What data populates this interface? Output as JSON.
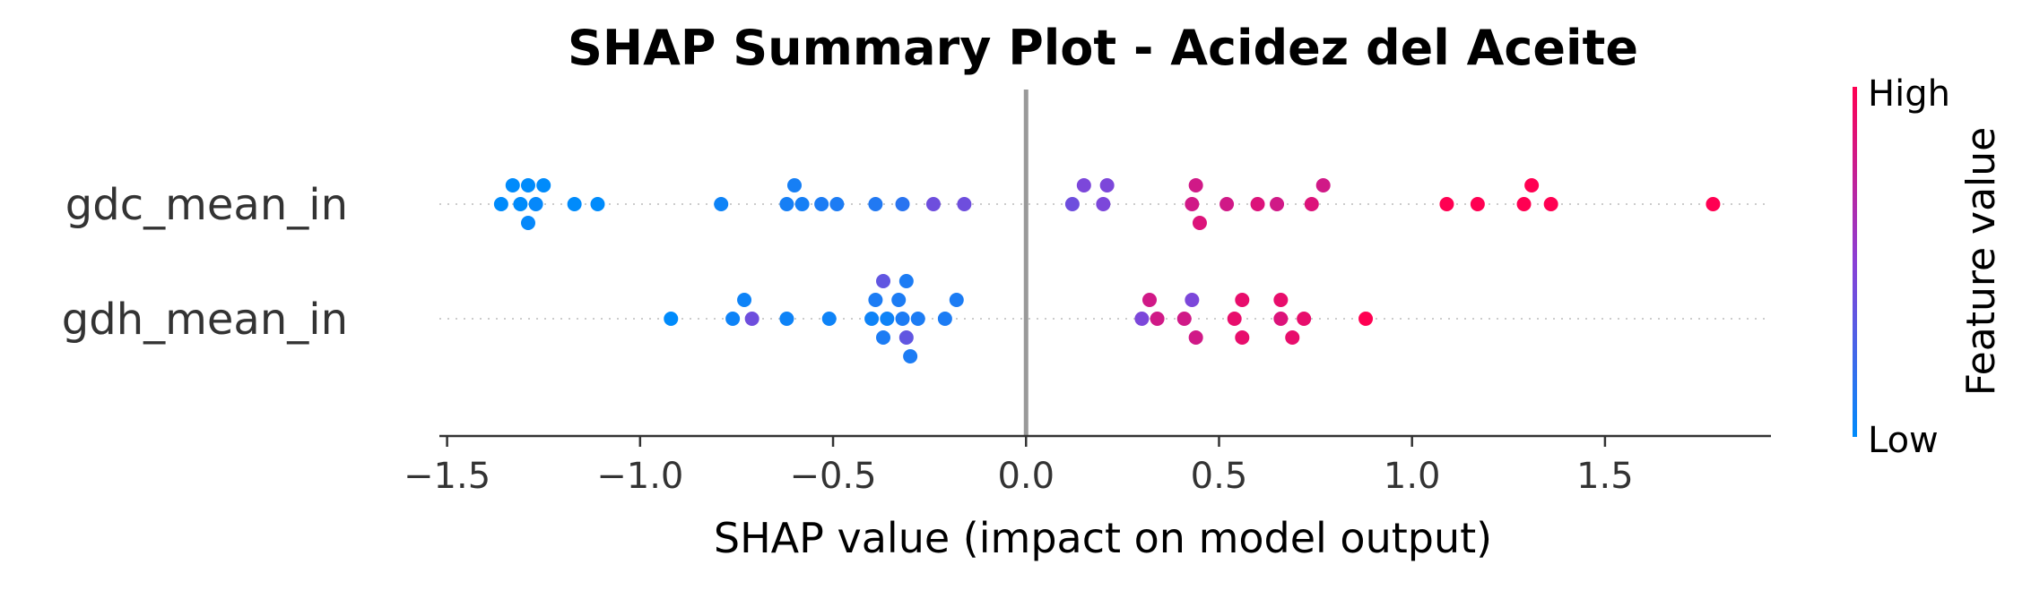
{
  "chart_data": {
    "type": "scatter",
    "title": "SHAP Summary Plot - Acidez del Aceite",
    "xlabel": "SHAP value (impact on model output)",
    "xlim": [
      -1.52,
      1.93
    ],
    "xticks": [
      -1.5,
      -1.0,
      -0.5,
      0.0,
      0.5,
      1.0,
      1.5
    ],
    "xtick_labels": [
      "−1.5",
      "−1.0",
      "−0.5",
      "0.0",
      "0.5",
      "1.0",
      "1.5"
    ],
    "grid": false,
    "features": [
      "gdc_mean_in",
      "gdh_mean_in"
    ],
    "colorbar": {
      "label": "Feature value",
      "high_label": "High",
      "low_label": "Low",
      "low_color": "#008bfb",
      "high_color": "#ff0052"
    },
    "series": [
      {
        "feature": "gdc_mean_in",
        "points": [
          {
            "x": -1.36,
            "v": 0.0
          },
          {
            "x": -1.33,
            "v": 0.0
          },
          {
            "x": -1.31,
            "v": 0.0
          },
          {
            "x": -1.29,
            "v": 0.0
          },
          {
            "x": -1.25,
            "v": 0.0
          },
          {
            "x": -1.17,
            "v": 0.0
          },
          {
            "x": -1.11,
            "v": 0.0
          },
          {
            "x": -1.29,
            "v": 0.02
          },
          {
            "x": -1.27,
            "v": 0.02
          },
          {
            "x": -0.79,
            "v": 0.05
          },
          {
            "x": -0.62,
            "v": 0.08
          },
          {
            "x": -0.6,
            "v": 0.08
          },
          {
            "x": -0.58,
            "v": 0.08
          },
          {
            "x": -0.53,
            "v": 0.1
          },
          {
            "x": -0.49,
            "v": 0.1
          },
          {
            "x": -0.39,
            "v": 0.12
          },
          {
            "x": -0.32,
            "v": 0.15
          },
          {
            "x": -0.24,
            "v": 0.4
          },
          {
            "x": -0.16,
            "v": 0.4
          },
          {
            "x": 0.12,
            "v": 0.4
          },
          {
            "x": 0.15,
            "v": 0.45
          },
          {
            "x": 0.2,
            "v": 0.45
          },
          {
            "x": 0.21,
            "v": 0.45
          },
          {
            "x": 0.43,
            "v": 0.8
          },
          {
            "x": 0.44,
            "v": 0.8
          },
          {
            "x": 0.45,
            "v": 0.85
          },
          {
            "x": 0.52,
            "v": 0.8
          },
          {
            "x": 0.6,
            "v": 0.85
          },
          {
            "x": 0.65,
            "v": 0.8
          },
          {
            "x": 0.74,
            "v": 0.85
          },
          {
            "x": 0.77,
            "v": 0.8
          },
          {
            "x": 1.09,
            "v": 1.0
          },
          {
            "x": 1.17,
            "v": 1.0
          },
          {
            "x": 1.29,
            "v": 1.0
          },
          {
            "x": 1.31,
            "v": 1.0
          },
          {
            "x": 1.36,
            "v": 1.0
          },
          {
            "x": 1.78,
            "v": 1.0
          }
        ]
      },
      {
        "feature": "gdh_mean_in",
        "points": [
          {
            "x": -0.92,
            "v": 0.0
          },
          {
            "x": -0.76,
            "v": 0.05
          },
          {
            "x": -0.73,
            "v": 0.05
          },
          {
            "x": -0.71,
            "v": 0.4
          },
          {
            "x": -0.62,
            "v": 0.05
          },
          {
            "x": -0.51,
            "v": 0.05
          },
          {
            "x": -0.4,
            "v": 0.05
          },
          {
            "x": -0.36,
            "v": 0.05
          },
          {
            "x": -0.31,
            "v": 0.35
          },
          {
            "x": -0.3,
            "v": 0.1
          },
          {
            "x": -0.39,
            "v": 0.1
          },
          {
            "x": -0.37,
            "v": 0.1
          },
          {
            "x": -0.33,
            "v": 0.1
          },
          {
            "x": -0.31,
            "v": 0.1
          },
          {
            "x": -0.28,
            "v": 0.1
          },
          {
            "x": -0.21,
            "v": 0.1
          },
          {
            "x": -0.18,
            "v": 0.1
          },
          {
            "x": -0.37,
            "v": 0.35
          },
          {
            "x": -0.32,
            "v": 0.1
          },
          {
            "x": 0.3,
            "v": 0.45
          },
          {
            "x": 0.32,
            "v": 0.8
          },
          {
            "x": 0.34,
            "v": 0.8
          },
          {
            "x": 0.41,
            "v": 0.8
          },
          {
            "x": 0.43,
            "v": 0.45
          },
          {
            "x": 0.44,
            "v": 0.8
          },
          {
            "x": 0.54,
            "v": 0.9
          },
          {
            "x": 0.56,
            "v": 0.9
          },
          {
            "x": 0.56,
            "v": 0.9
          },
          {
            "x": 0.66,
            "v": 0.85
          },
          {
            "x": 0.66,
            "v": 0.9
          },
          {
            "x": 0.69,
            "v": 0.9
          },
          {
            "x": 0.72,
            "v": 0.9
          },
          {
            "x": 0.88,
            "v": 1.0
          }
        ]
      }
    ]
  }
}
